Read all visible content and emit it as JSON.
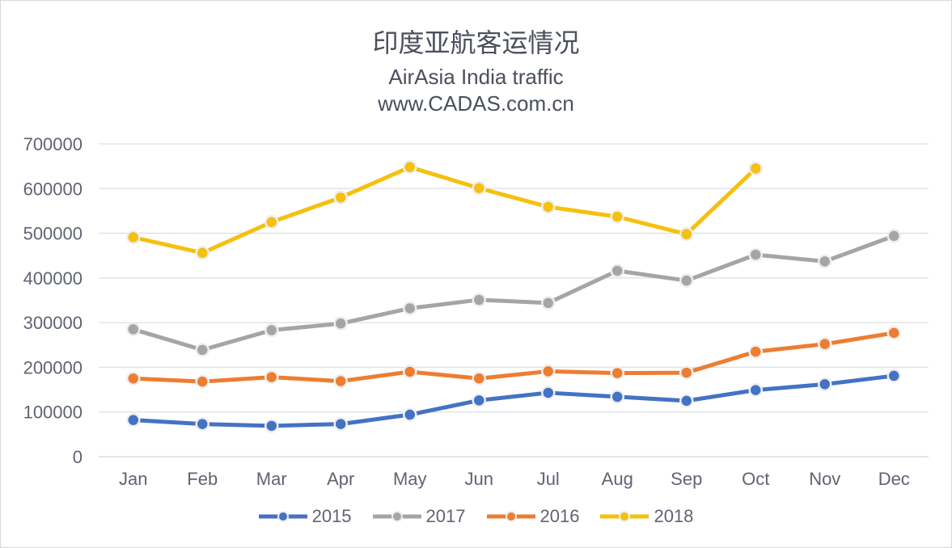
{
  "chart_data": {
    "type": "line",
    "title": "印度亚航客运情况",
    "subtitle_lines": [
      "AirAsia India traffic",
      "www.CADAS.com.cn"
    ],
    "categories": [
      "Jan",
      "Feb",
      "Mar",
      "Apr",
      "May",
      "Jun",
      "Jul",
      "Aug",
      "Sep",
      "Oct",
      "Nov",
      "Dec"
    ],
    "y_ticks": [
      "0",
      "100000",
      "200000",
      "300000",
      "400000",
      "500000",
      "600000",
      "700000"
    ],
    "ylim": [
      0,
      700000
    ],
    "grid": true,
    "legend_position": "bottom",
    "series": [
      {
        "name": "2015",
        "color": "#4472c4",
        "values": [
          82000,
          73000,
          69000,
          73000,
          94000,
          126000,
          143000,
          134000,
          125000,
          149000,
          162000,
          181000
        ]
      },
      {
        "name": "2017",
        "color": "#a5a5a5",
        "values": [
          285000,
          239000,
          283000,
          298000,
          332000,
          351000,
          344000,
          416000,
          394000,
          452000,
          437000,
          494000
        ]
      },
      {
        "name": "2016",
        "color": "#ed7d31",
        "values": [
          175000,
          168000,
          178000,
          169000,
          190000,
          175000,
          191000,
          187000,
          188000,
          235000,
          252000,
          277000
        ]
      },
      {
        "name": "2018",
        "color": "#f5c00e",
        "values": [
          491000,
          456000,
          525000,
          580000,
          648000,
          601000,
          559000,
          537000,
          498000,
          645000,
          null,
          null
        ]
      }
    ]
  }
}
